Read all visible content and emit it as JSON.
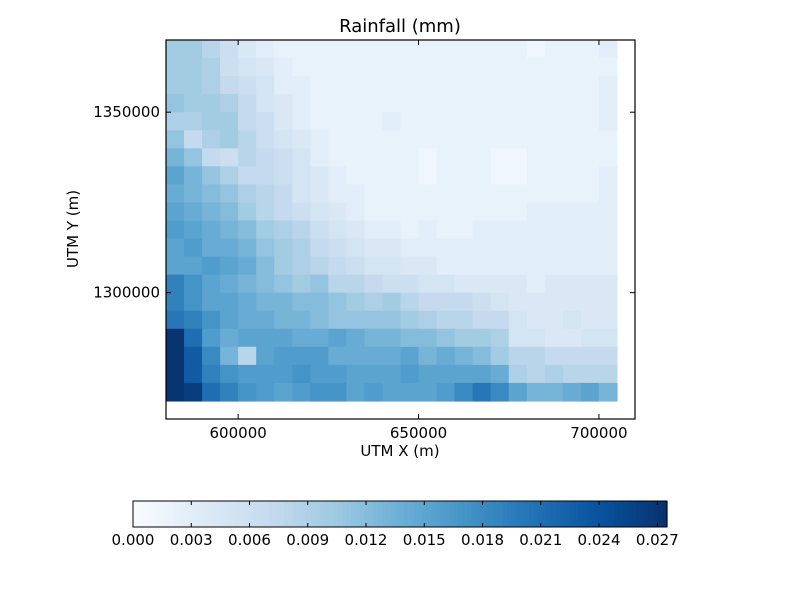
{
  "chart_data": {
    "type": "heatmap",
    "title": "Rainfall (mm)",
    "xlabel": "UTM X (m)",
    "ylabel": "UTM Y (m)",
    "xlim": [
      580000,
      710000
    ],
    "ylim": [
      1265000,
      1370000
    ],
    "xticks": [
      600000,
      650000,
      700000
    ],
    "xtick_labels": [
      "600000",
      "650000",
      "700000"
    ],
    "yticks": [
      1300000,
      1350000
    ],
    "ytick_labels": [
      "1300000",
      "1350000"
    ],
    "grid": false,
    "colormap": "Blues",
    "colormap_stops": [
      "#f7fbff",
      "#deebf7",
      "#c6dbef",
      "#9ecae1",
      "#6baed6",
      "#4292c6",
      "#2171b5",
      "#08519c",
      "#08306b"
    ],
    "colorbar": {
      "orientation": "horizontal",
      "placement": "bottom",
      "vmin": 0.0,
      "vmax": 0.0275,
      "ticks": [
        0.0,
        0.003,
        0.006,
        0.009,
        0.012,
        0.015,
        0.018,
        0.021,
        0.024,
        0.027
      ],
      "tick_labels": [
        "0.000",
        "0.003",
        "0.006",
        "0.009",
        "0.012",
        "0.015",
        "0.018",
        "0.021",
        "0.024",
        "0.027"
      ]
    },
    "grid_cells": {
      "x_start": 580000,
      "x_end": 705000,
      "y_start": 1270000,
      "y_end": 1370000,
      "ncols": 25,
      "nrows": 20,
      "row_order": "top_to_bottom",
      "values": [
        [
          0.01,
          0.01,
          0.008,
          0.006,
          0.004,
          0.003,
          0.002,
          0.002,
          0.002,
          0.002,
          0.002,
          0.002,
          0.002,
          0.002,
          0.002,
          0.002,
          0.002,
          0.002,
          0.002,
          0.002,
          0.001,
          0.002,
          0.002,
          0.002,
          0.003
        ],
        [
          0.01,
          0.01,
          0.009,
          0.006,
          0.005,
          0.004,
          0.003,
          0.002,
          0.002,
          0.002,
          0.002,
          0.002,
          0.002,
          0.002,
          0.002,
          0.002,
          0.002,
          0.002,
          0.002,
          0.002,
          0.002,
          0.002,
          0.002,
          0.002,
          0.002
        ],
        [
          0.01,
          0.01,
          0.009,
          0.007,
          0.006,
          0.005,
          0.003,
          0.003,
          0.002,
          0.002,
          0.002,
          0.002,
          0.002,
          0.002,
          0.002,
          0.002,
          0.002,
          0.002,
          0.002,
          0.002,
          0.002,
          0.002,
          0.002,
          0.002,
          0.003
        ],
        [
          0.011,
          0.01,
          0.01,
          0.009,
          0.007,
          0.005,
          0.004,
          0.003,
          0.002,
          0.002,
          0.002,
          0.002,
          0.002,
          0.002,
          0.002,
          0.002,
          0.002,
          0.002,
          0.002,
          0.002,
          0.002,
          0.002,
          0.002,
          0.002,
          0.003
        ],
        [
          0.009,
          0.009,
          0.01,
          0.01,
          0.007,
          0.006,
          0.004,
          0.003,
          0.002,
          0.002,
          0.002,
          0.002,
          0.003,
          0.002,
          0.002,
          0.002,
          0.002,
          0.002,
          0.002,
          0.002,
          0.002,
          0.002,
          0.002,
          0.002,
          0.003
        ],
        [
          0.011,
          0.007,
          0.009,
          0.01,
          0.008,
          0.006,
          0.005,
          0.004,
          0.003,
          0.002,
          0.002,
          0.002,
          0.002,
          0.002,
          0.002,
          0.002,
          0.002,
          0.002,
          0.002,
          0.002,
          0.002,
          0.002,
          0.002,
          0.002,
          0.002
        ],
        [
          0.013,
          0.011,
          0.007,
          0.006,
          0.008,
          0.007,
          0.006,
          0.005,
          0.003,
          0.002,
          0.002,
          0.002,
          0.002,
          0.002,
          0.001,
          0.002,
          0.002,
          0.002,
          0.001,
          0.001,
          0.002,
          0.002,
          0.002,
          0.002,
          0.002
        ],
        [
          0.015,
          0.013,
          0.011,
          0.009,
          0.007,
          0.007,
          0.006,
          0.005,
          0.004,
          0.003,
          0.002,
          0.002,
          0.002,
          0.002,
          0.001,
          0.002,
          0.002,
          0.002,
          0.001,
          0.001,
          0.002,
          0.002,
          0.002,
          0.002,
          0.003
        ],
        [
          0.014,
          0.013,
          0.012,
          0.011,
          0.009,
          0.008,
          0.007,
          0.005,
          0.004,
          0.003,
          0.003,
          0.002,
          0.002,
          0.002,
          0.002,
          0.002,
          0.002,
          0.002,
          0.002,
          0.002,
          0.002,
          0.002,
          0.002,
          0.002,
          0.003
        ],
        [
          0.015,
          0.014,
          0.013,
          0.012,
          0.01,
          0.008,
          0.007,
          0.006,
          0.005,
          0.004,
          0.003,
          0.002,
          0.002,
          0.002,
          0.002,
          0.002,
          0.002,
          0.002,
          0.002,
          0.002,
          0.003,
          0.003,
          0.003,
          0.003,
          0.003
        ],
        [
          0.016,
          0.015,
          0.014,
          0.013,
          0.012,
          0.01,
          0.009,
          0.008,
          0.006,
          0.005,
          0.004,
          0.003,
          0.003,
          0.002,
          0.003,
          0.002,
          0.002,
          0.003,
          0.003,
          0.003,
          0.003,
          0.003,
          0.003,
          0.003,
          0.003
        ],
        [
          0.015,
          0.016,
          0.014,
          0.014,
          0.013,
          0.011,
          0.01,
          0.009,
          0.007,
          0.006,
          0.005,
          0.004,
          0.004,
          0.003,
          0.003,
          0.003,
          0.003,
          0.003,
          0.003,
          0.003,
          0.003,
          0.003,
          0.003,
          0.003,
          0.003
        ],
        [
          0.015,
          0.015,
          0.016,
          0.015,
          0.014,
          0.012,
          0.01,
          0.009,
          0.008,
          0.007,
          0.006,
          0.005,
          0.005,
          0.004,
          0.004,
          0.003,
          0.003,
          0.003,
          0.003,
          0.003,
          0.003,
          0.003,
          0.003,
          0.003,
          0.003
        ],
        [
          0.019,
          0.017,
          0.015,
          0.014,
          0.013,
          0.012,
          0.011,
          0.01,
          0.011,
          0.008,
          0.008,
          0.007,
          0.006,
          0.006,
          0.005,
          0.005,
          0.004,
          0.004,
          0.004,
          0.004,
          0.003,
          0.004,
          0.004,
          0.004,
          0.004
        ],
        [
          0.019,
          0.017,
          0.015,
          0.015,
          0.014,
          0.013,
          0.013,
          0.012,
          0.012,
          0.011,
          0.01,
          0.009,
          0.01,
          0.008,
          0.007,
          0.007,
          0.007,
          0.006,
          0.005,
          0.004,
          0.004,
          0.004,
          0.004,
          0.004,
          0.004
        ],
        [
          0.02,
          0.019,
          0.017,
          0.015,
          0.014,
          0.014,
          0.013,
          0.013,
          0.012,
          0.011,
          0.011,
          0.011,
          0.011,
          0.01,
          0.009,
          0.008,
          0.008,
          0.007,
          0.007,
          0.005,
          0.004,
          0.004,
          0.005,
          0.004,
          0.004
        ],
        [
          0.027,
          0.021,
          0.016,
          0.014,
          0.015,
          0.015,
          0.015,
          0.014,
          0.014,
          0.015,
          0.014,
          0.013,
          0.013,
          0.012,
          0.012,
          0.011,
          0.01,
          0.01,
          0.009,
          0.005,
          0.005,
          0.004,
          0.004,
          0.005,
          0.005
        ],
        [
          0.027,
          0.023,
          0.018,
          0.013,
          0.008,
          0.015,
          0.016,
          0.016,
          0.016,
          0.014,
          0.014,
          0.014,
          0.014,
          0.015,
          0.013,
          0.014,
          0.013,
          0.012,
          0.01,
          0.008,
          0.008,
          0.007,
          0.007,
          0.007,
          0.007
        ],
        [
          0.027,
          0.023,
          0.019,
          0.017,
          0.016,
          0.016,
          0.016,
          0.017,
          0.016,
          0.016,
          0.015,
          0.015,
          0.015,
          0.016,
          0.015,
          0.015,
          0.015,
          0.015,
          0.014,
          0.009,
          0.008,
          0.009,
          0.008,
          0.008,
          0.008
        ],
        [
          0.027,
          0.026,
          0.021,
          0.019,
          0.017,
          0.016,
          0.015,
          0.016,
          0.017,
          0.017,
          0.015,
          0.016,
          0.015,
          0.015,
          0.015,
          0.016,
          0.018,
          0.02,
          0.018,
          0.015,
          0.013,
          0.013,
          0.014,
          0.015,
          0.013
        ]
      ]
    }
  }
}
